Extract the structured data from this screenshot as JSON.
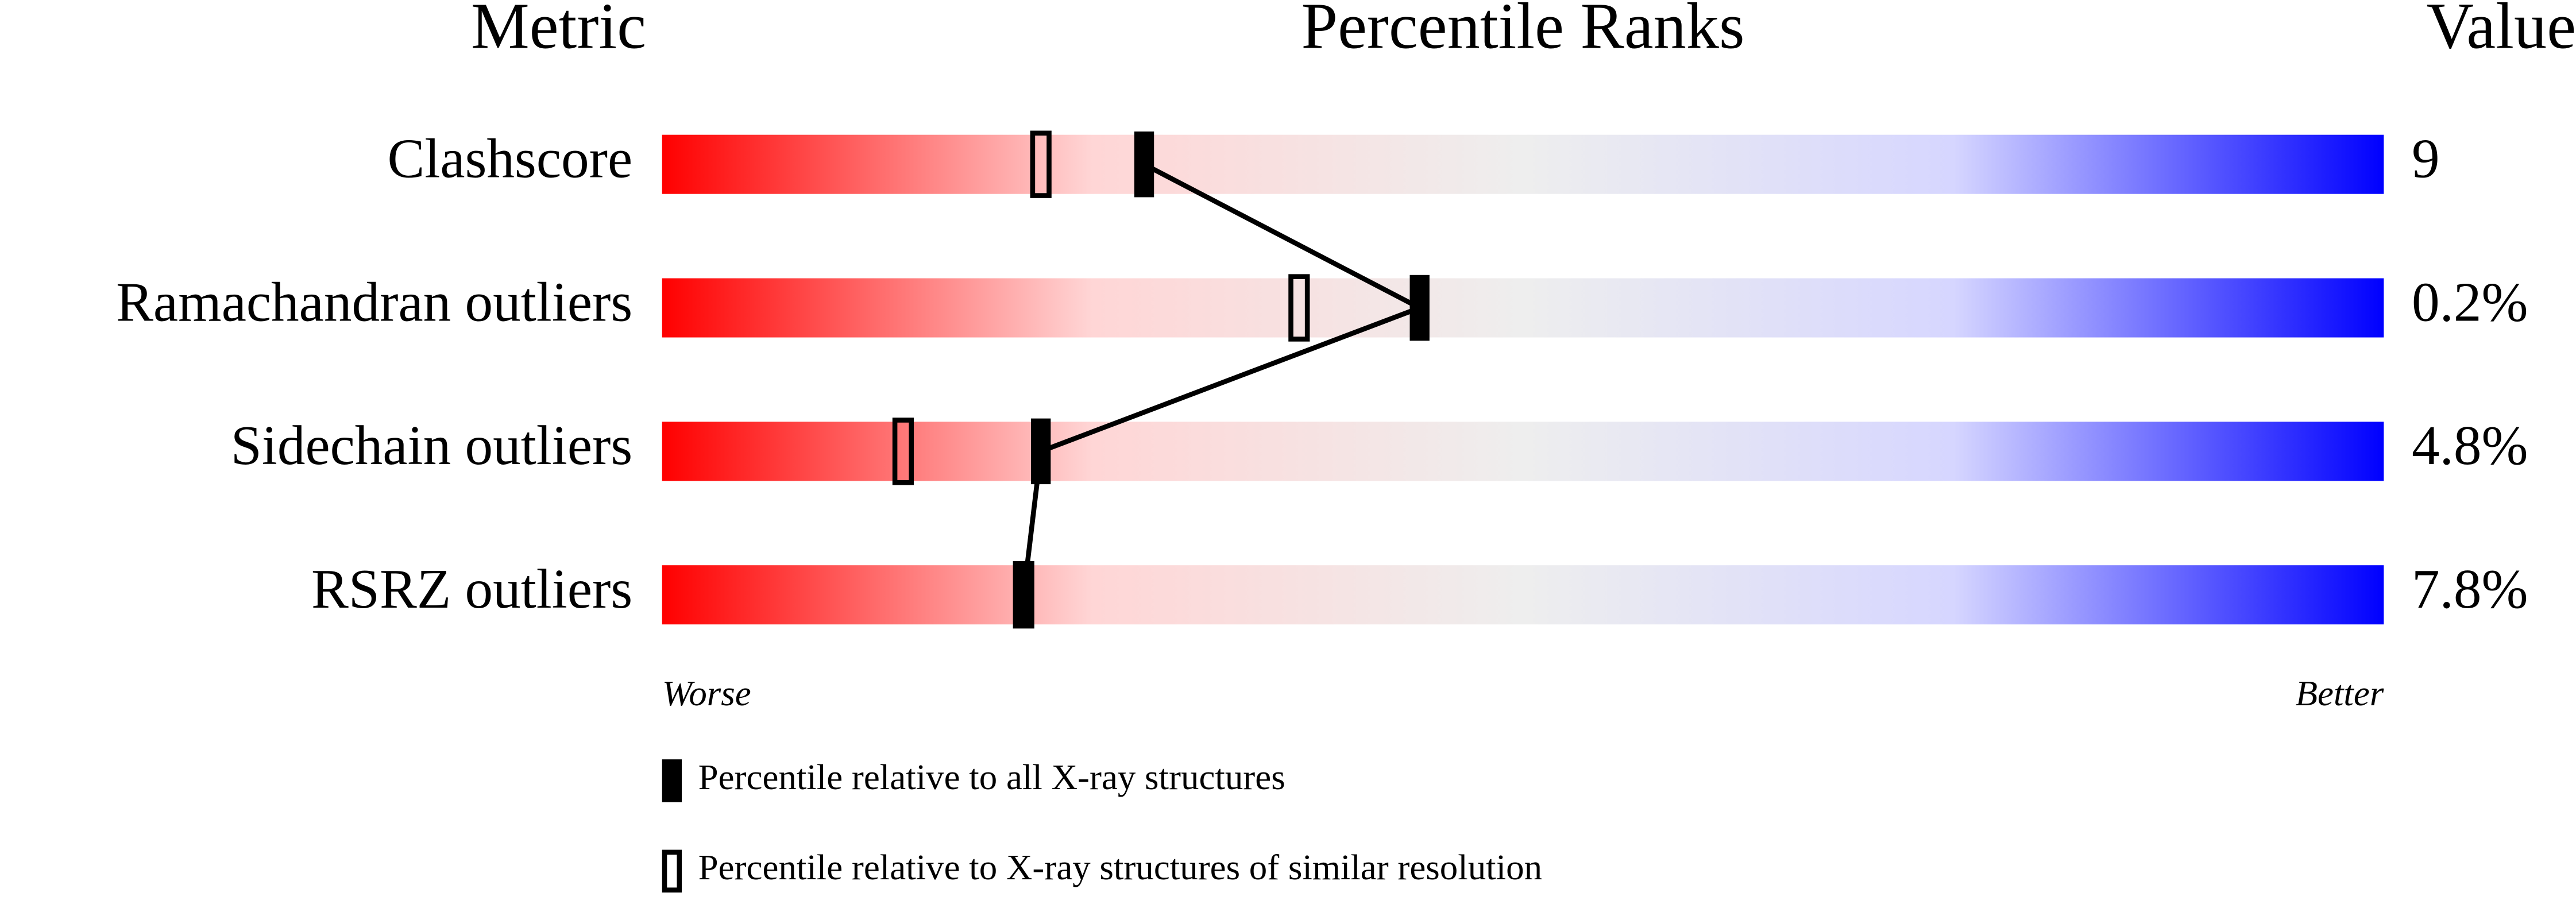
{
  "chart_data": {
    "type": "percentile-slider",
    "title": "Percentile Ranks",
    "metric_header": "Metric",
    "value_header": "Value",
    "categories": [
      "Clashscore",
      "Ramachandran outliers",
      "Sidechain outliers",
      "RSRZ outliers"
    ],
    "value_column": [
      "9",
      "0.2%",
      "4.8%",
      "7.8%"
    ],
    "series": [
      {
        "name": "Percentile relative to all X-ray structures",
        "marker": "filled",
        "color": "#000000",
        "values": [
          28,
          44,
          22,
          21
        ]
      },
      {
        "name": "Percentile relative to X-ray structures of similar resolution",
        "marker": "hollow",
        "color": "#000000",
        "values": [
          22,
          37,
          14,
          21
        ]
      }
    ],
    "xlim": [
      0,
      100
    ],
    "worse_label": "Worse",
    "better_label": "Better",
    "gradient_colors": [
      "#ff0000",
      "#ffd6d6",
      "#eeeeee",
      "#d6d6ff",
      "#0000ff"
    ]
  }
}
